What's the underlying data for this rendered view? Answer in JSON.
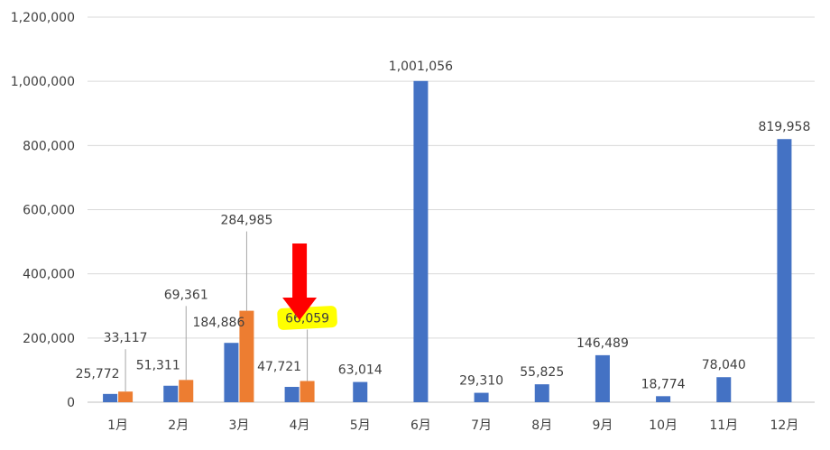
{
  "chart_data": {
    "type": "bar",
    "title": "",
    "xlabel": "",
    "ylabel": "",
    "categories": [
      "1月",
      "2月",
      "3月",
      "4月",
      "5月",
      "6月",
      "7月",
      "8月",
      "9月",
      "10月",
      "11月",
      "12月"
    ],
    "series": [
      {
        "color": "#4472C4",
        "values": [
          25772,
          51311,
          184886,
          47721,
          63014,
          1001056,
          29310,
          55825,
          146489,
          18774,
          78040,
          819958
        ],
        "labels": [
          "25,772",
          "51,311",
          "184,886",
          "47,721",
          "63,014",
          "1,001,056",
          "29,310",
          "55,825",
          "146,489",
          "18,774",
          "78,040",
          "819,958"
        ]
      },
      {
        "color": "#ED7D31",
        "values": [
          33117,
          69361,
          284985,
          66059,
          null,
          null,
          null,
          null,
          null,
          null,
          null,
          null
        ],
        "labels": [
          "33,117",
          "69,361",
          "284,985",
          "66,059",
          null,
          null,
          null,
          null,
          null,
          null,
          null,
          null
        ]
      }
    ],
    "ylim": [
      0,
      1200000
    ],
    "yticks": [
      0,
      200000,
      400000,
      600000,
      800000,
      1000000,
      1200000
    ],
    "ytick_labels": [
      "0",
      "200,000",
      "400,000",
      "600,000",
      "800,000",
      "1,000,000",
      "1,200,000"
    ],
    "grid": true,
    "legend": "none",
    "annotations": [
      {
        "type": "arrow",
        "color": "#FF0000",
        "points_to": "4月"
      },
      {
        "type": "highlight",
        "color": "#FFFF00",
        "target": "66,059"
      }
    ]
  }
}
